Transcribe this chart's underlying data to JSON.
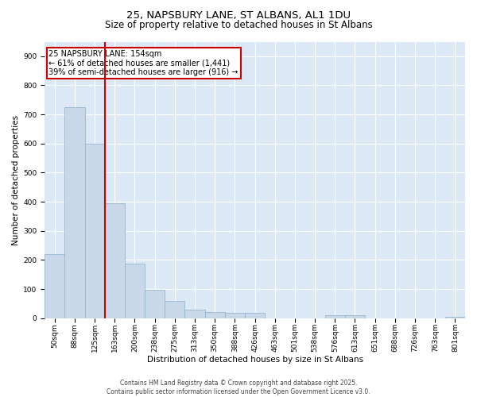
{
  "title_line1": "25, NAPSBURY LANE, ST ALBANS, AL1 1DU",
  "title_line2": "Size of property relative to detached houses in St Albans",
  "xlabel": "Distribution of detached houses by size in St Albans",
  "ylabel": "Number of detached properties",
  "categories": [
    "50sqm",
    "88sqm",
    "125sqm",
    "163sqm",
    "200sqm",
    "238sqm",
    "275sqm",
    "313sqm",
    "350sqm",
    "388sqm",
    "426sqm",
    "463sqm",
    "501sqm",
    "538sqm",
    "576sqm",
    "613sqm",
    "651sqm",
    "688sqm",
    "726sqm",
    "763sqm",
    "801sqm"
  ],
  "values": [
    220,
    725,
    600,
    395,
    188,
    98,
    58,
    28,
    20,
    18,
    17,
    0,
    0,
    0,
    10,
    10,
    0,
    0,
    0,
    0,
    5
  ],
  "bar_color": "#c8d8e8",
  "bar_edge_color": "#8ab0cc",
  "vline_color": "#cc0000",
  "vline_linewidth": 1.5,
  "vline_pos": 2.5,
  "annotation_text": "25 NAPSBURY LANE: 154sqm\n← 61% of detached houses are smaller (1,441)\n39% of semi-detached houses are larger (916) →",
  "annotation_box_color": "#cc0000",
  "annotation_text_color": "#000000",
  "annotation_fontsize": 7.0,
  "ylim": [
    0,
    950
  ],
  "yticks": [
    0,
    100,
    200,
    300,
    400,
    500,
    600,
    700,
    800,
    900
  ],
  "plot_bg_color": "#dce9f5",
  "fig_bg_color": "#ffffff",
  "footer_text": "Contains HM Land Registry data © Crown copyright and database right 2025.\nContains public sector information licensed under the Open Government Licence v3.0.",
  "title1_fontsize": 9.5,
  "title2_fontsize": 8.5,
  "axis_label_fontsize": 7.5,
  "tick_fontsize": 6.5,
  "footer_fontsize": 5.5
}
